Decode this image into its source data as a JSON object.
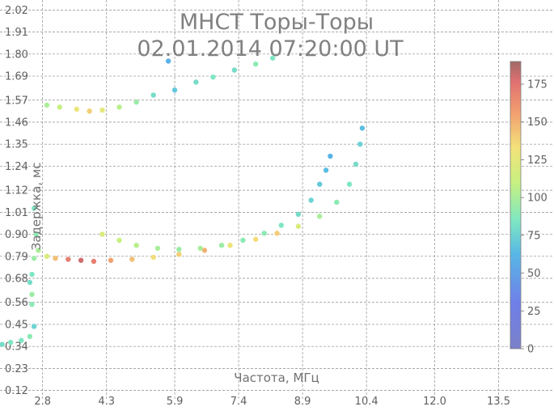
{
  "chart_data": {
    "type": "scatter",
    "title": "МНСТ Торы-Торы",
    "subtitle": "02.01.2014 07:20:00 UT",
    "xlabel": "Частота, МГц",
    "ylabel": "Задержка, мс",
    "xlim": [
      1.8,
      14.8
    ],
    "ylim": [
      0.07,
      2.07
    ],
    "x_ticks": [
      "2.8",
      "4.3",
      "5.9",
      "7.4",
      "8.9",
      "10.4",
      "12.0",
      "13.5"
    ],
    "x_tick_values": [
      2.8,
      4.3,
      5.9,
      7.4,
      8.9,
      10.4,
      12.0,
      13.5
    ],
    "y_ticks": [
      "2.02",
      "1.91",
      "1.80",
      "1.69",
      "1.57",
      "1.46",
      "1.35",
      "1.24",
      "1.12",
      "1.01",
      "0.90",
      "0.79",
      "0.68",
      "0.56",
      "0.45",
      "0.34",
      "0.23",
      "0.12"
    ],
    "y_tick_values": [
      2.02,
      1.91,
      1.8,
      1.69,
      1.57,
      1.46,
      1.35,
      1.24,
      1.12,
      1.01,
      0.9,
      0.79,
      0.68,
      0.56,
      0.45,
      0.34,
      0.23,
      0.12
    ],
    "grid": true,
    "colorbar": {
      "min": 0,
      "max": 190,
      "ticks": [
        "0",
        "25",
        "50",
        "75",
        "100",
        "125",
        "150",
        "175"
      ],
      "tick_values": [
        0,
        25,
        50,
        75,
        100,
        125,
        150,
        175
      ]
    },
    "series": [
      {
        "points": [
          [
            1.85,
            0.35,
            80
          ],
          [
            2.05,
            0.36,
            85
          ],
          [
            2.3,
            0.37,
            85
          ],
          [
            2.5,
            0.39,
            90
          ],
          [
            2.6,
            0.44,
            75
          ],
          [
            2.55,
            0.55,
            90
          ],
          [
            2.55,
            0.6,
            95
          ],
          [
            2.5,
            0.66,
            80
          ],
          [
            2.55,
            0.7,
            85
          ],
          [
            2.6,
            0.78,
            95
          ],
          [
            2.65,
            0.9,
            90
          ],
          [
            2.6,
            1.03,
            85
          ]
        ]
      },
      {
        "points": [
          [
            2.7,
            0.82,
            100
          ],
          [
            2.9,
            0.79,
            120
          ],
          [
            3.1,
            0.78,
            145
          ],
          [
            3.4,
            0.775,
            170
          ],
          [
            3.7,
            0.77,
            180
          ],
          [
            4.0,
            0.765,
            170
          ],
          [
            4.4,
            0.77,
            155
          ],
          [
            4.9,
            0.775,
            145
          ],
          [
            5.4,
            0.785,
            135
          ],
          [
            6.0,
            0.8,
            140
          ],
          [
            6.6,
            0.82,
            150
          ],
          [
            7.2,
            0.845,
            130
          ],
          [
            7.8,
            0.875,
            135
          ],
          [
            8.3,
            0.905,
            140
          ],
          [
            8.8,
            0.94,
            120
          ],
          [
            9.3,
            0.99,
            100
          ],
          [
            9.7,
            1.06,
            90
          ],
          [
            10.0,
            1.15,
            85
          ],
          [
            10.15,
            1.25,
            80
          ],
          [
            10.25,
            1.35,
            75
          ],
          [
            10.3,
            1.43,
            65
          ]
        ]
      },
      {
        "points": [
          [
            4.2,
            0.9,
            120
          ],
          [
            4.6,
            0.87,
            110
          ],
          [
            5.0,
            0.845,
            105
          ],
          [
            5.5,
            0.83,
            100
          ],
          [
            6.0,
            0.825,
            95
          ],
          [
            6.5,
            0.83,
            100
          ],
          [
            7.0,
            0.845,
            95
          ],
          [
            7.5,
            0.87,
            90
          ],
          [
            8.0,
            0.905,
            90
          ],
          [
            8.4,
            0.945,
            85
          ],
          [
            8.8,
            1.0,
            80
          ],
          [
            9.1,
            1.07,
            75
          ],
          [
            9.3,
            1.15,
            70
          ],
          [
            9.45,
            1.22,
            65
          ],
          [
            9.55,
            1.29,
            60
          ]
        ]
      },
      {
        "points": [
          [
            2.9,
            1.545,
            100
          ],
          [
            3.2,
            1.535,
            110
          ],
          [
            3.6,
            1.525,
            130
          ],
          [
            3.9,
            1.515,
            140
          ],
          [
            4.2,
            1.52,
            125
          ],
          [
            4.6,
            1.535,
            105
          ],
          [
            5.0,
            1.56,
            95
          ],
          [
            5.4,
            1.595,
            80
          ],
          [
            5.9,
            1.62,
            70
          ],
          [
            6.4,
            1.66,
            80
          ],
          [
            6.8,
            1.685,
            85
          ],
          [
            7.3,
            1.72,
            80
          ],
          [
            7.8,
            1.75,
            90
          ],
          [
            8.2,
            1.78,
            85
          ],
          [
            5.75,
            1.765,
            60
          ]
        ]
      }
    ]
  }
}
